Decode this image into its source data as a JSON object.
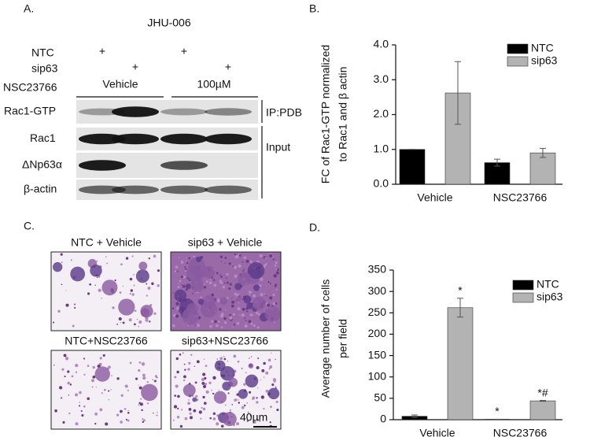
{
  "blot": {
    "panel_label": "A.",
    "cell_line": "JHU-006",
    "condition_rows": [
      {
        "label": "NTC",
        "lanes": [
          "+",
          null,
          "+",
          null
        ]
      },
      {
        "label": "sip63",
        "lanes": [
          null,
          "+",
          null,
          "+"
        ]
      }
    ],
    "treatment_label": "NSC23766",
    "treatments": [
      "Vehicle",
      "100µM"
    ],
    "bands": [
      "Rac1-GTP",
      "Rac1",
      "ΔNp63α",
      "β-actin"
    ],
    "groups": [
      "IP:PDB",
      "Input"
    ]
  },
  "micrographs": {
    "panel_label": "C.",
    "labels": [
      "NTC + Vehicle",
      "sip63 + Vehicle",
      "NTC+NSC23766",
      "sip63+NSC23766"
    ],
    "scale_bar": "40µm"
  },
  "chart_data": [
    {
      "type": "bar",
      "panel_label": "B.",
      "ylabel": [
        "FC of Rac1-GTP normalized",
        "to Rac1 and  β actin"
      ],
      "categories": [
        "Vehicle",
        "NSC23766"
      ],
      "series": [
        {
          "name": "NTC",
          "color": "#000000",
          "values": [
            1.0,
            0.62
          ],
          "errors": [
            0,
            0.1
          ]
        },
        {
          "name": "sip63",
          "color": "#b3b3b3",
          "values": [
            2.62,
            0.9
          ],
          "errors": [
            0.9,
            0.13
          ]
        }
      ],
      "ylim": [
        0,
        4
      ],
      "yticks": [
        {
          "value": 0,
          "label": "0.0"
        },
        {
          "value": 1,
          "label": "1.0"
        },
        {
          "value": 2,
          "label": "2.0"
        },
        {
          "value": 3,
          "label": "3.0"
        },
        {
          "value": 4,
          "label": "4.0"
        }
      ],
      "legend": "upper right"
    },
    {
      "type": "bar",
      "panel_label": "D.",
      "ylabel": [
        "Average number of cells",
        "per field"
      ],
      "categories": [
        "Vehicle",
        "NSC23766"
      ],
      "series": [
        {
          "name": "NTC",
          "color": "#000000",
          "values": [
            8,
            1
          ],
          "errors": [
            3,
            0
          ],
          "value_annotations": [
            null,
            "*"
          ]
        },
        {
          "name": "sip63",
          "color": "#b3b3b3",
          "values": [
            262,
            44
          ],
          "errors": [
            22,
            1
          ],
          "value_annotations": [
            "*",
            "*#"
          ]
        }
      ],
      "ylim": [
        0,
        350
      ],
      "yticks": [
        0,
        50,
        100,
        150,
        200,
        250,
        300,
        350
      ],
      "legend": "upper right"
    }
  ]
}
